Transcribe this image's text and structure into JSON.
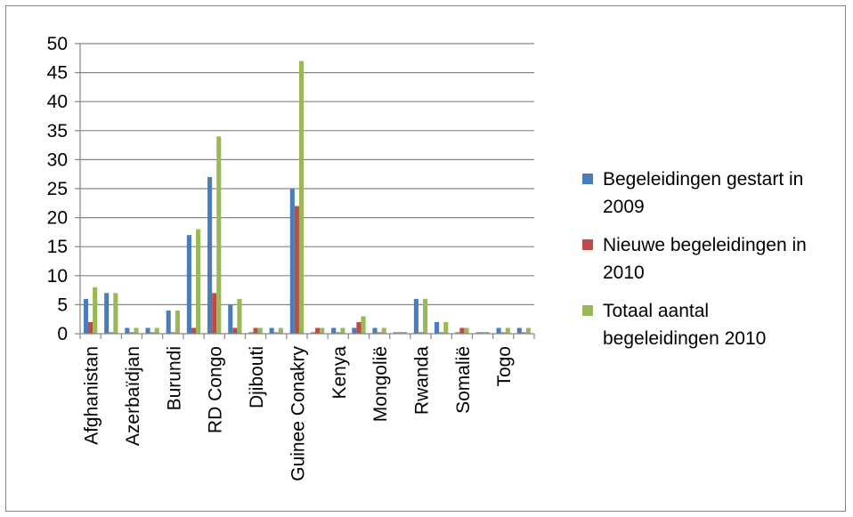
{
  "chart_data": {
    "type": "bar",
    "title": "",
    "xlabel": "",
    "ylabel": "",
    "ylim": [
      0,
      50
    ],
    "yticks": [
      0,
      5,
      10,
      15,
      20,
      25,
      30,
      35,
      40,
      45,
      50
    ],
    "grid": true,
    "legend_position": "right",
    "categories": [
      "Afghanistan",
      "",
      "Azerbaïdjan",
      "",
      "Burundi",
      "",
      "RD Congo",
      "",
      "Djibouti",
      "",
      "Guinee Conakry",
      "",
      "Kenya",
      "",
      "Mongolië",
      "",
      "Rwanda",
      "",
      "Somalië",
      "",
      "Togo",
      ""
    ],
    "series": [
      {
        "name_lines": [
          "Begeleidingen gestart in",
          "2009"
        ],
        "color": "#4a7ebb",
        "values": [
          6,
          7,
          1,
          1,
          4,
          17,
          27,
          5,
          0,
          1,
          25,
          0,
          1,
          1,
          1,
          0,
          6,
          2,
          0,
          0,
          1,
          1
        ]
      },
      {
        "name_lines": [
          "Nieuwe begeleidingen in",
          "2010"
        ],
        "color": "#be4b48",
        "values": [
          2,
          0,
          0,
          0,
          0,
          1,
          7,
          1,
          1,
          0,
          22,
          1,
          0,
          2,
          0,
          0,
          0,
          0,
          1,
          0,
          0,
          0
        ]
      },
      {
        "name_lines": [
          "Totaal aantal",
          "begeleidingen 2010"
        ],
        "color": "#98b954",
        "values": [
          8,
          7,
          1,
          1,
          4,
          18,
          34,
          6,
          1,
          1,
          47,
          1,
          1,
          3,
          1,
          0,
          6,
          2,
          1,
          0,
          1,
          1
        ]
      }
    ]
  }
}
